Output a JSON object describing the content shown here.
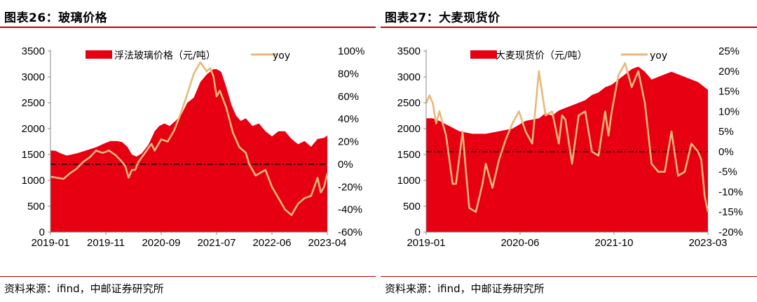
{
  "chart_data": [
    {
      "type": "area+line",
      "title": "图表26：玻璃价格",
      "source": "资料来源：ifind，中邮证券研究所",
      "x_ticks": [
        "2019-01",
        "2019-11",
        "2020-09",
        "2021-07",
        "2022-06",
        "2023-04"
      ],
      "x_range": [
        2019.0,
        2023.25
      ],
      "y_left": {
        "ticks": [
          "0",
          "500",
          "1000",
          "1500",
          "2000",
          "2500",
          "3000",
          "3500"
        ],
        "range": [
          0,
          3500
        ]
      },
      "y_right": {
        "ticks": [
          "-60%",
          "-40%",
          "-20%",
          "0%",
          "20%",
          "40%",
          "60%",
          "80%",
          "100%"
        ],
        "range": [
          -60,
          100
        ]
      },
      "zero_line": true,
      "series": [
        {
          "name": "浮法玻璃价格（元/吨）",
          "kind": "area",
          "axis": "left",
          "color": "#e60012",
          "x": [
            2019.0,
            2019.08,
            2019.16,
            2019.25,
            2019.4,
            2019.55,
            2019.7,
            2019.8,
            2019.92,
            2020.02,
            2020.1,
            2020.18,
            2020.25,
            2020.32,
            2020.4,
            2020.5,
            2020.6,
            2020.67,
            2020.75,
            2020.83,
            2020.92,
            2021.0,
            2021.1,
            2021.2,
            2021.3,
            2021.4,
            2021.45,
            2021.5,
            2021.55,
            2021.62,
            2021.7,
            2021.78,
            2021.85,
            2021.92,
            2022.0,
            2022.1,
            2022.2,
            2022.3,
            2022.4,
            2022.5,
            2022.6,
            2022.7,
            2022.8,
            2022.9,
            2023.0,
            2023.1,
            2023.2,
            2023.25
          ],
          "values": [
            1580,
            1570,
            1520,
            1480,
            1520,
            1580,
            1640,
            1700,
            1760,
            1760,
            1740,
            1650,
            1500,
            1460,
            1520,
            1680,
            1950,
            2050,
            2100,
            2050,
            2150,
            2250,
            2500,
            2600,
            2900,
            3050,
            3100,
            3150,
            3150,
            3100,
            2800,
            2450,
            2250,
            2150,
            2200,
            2050,
            2100,
            1950,
            1850,
            1950,
            1950,
            1800,
            1700,
            1760,
            1650,
            1800,
            1820,
            1870
          ]
        },
        {
          "name": "yoy",
          "kind": "line",
          "axis": "right",
          "color": "#e6b97a",
          "x": [
            2019.0,
            2019.1,
            2019.2,
            2019.3,
            2019.4,
            2019.5,
            2019.6,
            2019.7,
            2019.8,
            2019.9,
            2020.0,
            2020.1,
            2020.15,
            2020.2,
            2020.25,
            2020.3,
            2020.35,
            2020.45,
            2020.55,
            2020.6,
            2020.7,
            2020.8,
            2020.9,
            2021.0,
            2021.1,
            2021.2,
            2021.3,
            2021.4,
            2021.45,
            2021.5,
            2021.55,
            2021.6,
            2021.7,
            2021.8,
            2021.9,
            2022.0,
            2022.05,
            2022.15,
            2022.3,
            2022.4,
            2022.5,
            2022.6,
            2022.7,
            2022.8,
            2022.9,
            2023.0,
            2023.1,
            2023.15,
            2023.2,
            2023.25
          ],
          "values": [
            -11,
            -12,
            -13,
            -8,
            -4,
            2,
            6,
            12,
            10,
            12,
            8,
            2,
            -2,
            -12,
            -5,
            -5,
            2,
            10,
            18,
            12,
            22,
            20,
            30,
            45,
            62,
            80,
            90,
            82,
            85,
            78,
            60,
            65,
            50,
            28,
            15,
            10,
            0,
            -10,
            -5,
            -20,
            -30,
            -40,
            -45,
            -35,
            -30,
            -28,
            -12,
            -25,
            -20,
            -8
          ]
        }
      ]
    },
    {
      "type": "area+line",
      "title": "图表27：大麦现货价",
      "source": "资料来源：ifind，中邮证券研究所",
      "x_ticks": [
        "2019-01",
        "2020-06",
        "2021-10",
        "2023-03"
      ],
      "x_range": [
        2019.0,
        2023.25
      ],
      "y_left": {
        "ticks": [
          "0",
          "500",
          "1000",
          "1500",
          "2000",
          "2500",
          "3000",
          "3500"
        ],
        "range": [
          0,
          3500
        ]
      },
      "y_right": {
        "ticks": [
          "-20%",
          "-15%",
          "-10%",
          "-5%",
          "0%",
          "5%",
          "10%",
          "15%",
          "20%",
          "25%"
        ],
        "range": [
          -20,
          25
        ]
      },
      "zero_line": true,
      "series": [
        {
          "name": "大麦现货价（元/吨）",
          "kind": "area",
          "axis": "left",
          "color": "#e60012",
          "x": [
            2019.0,
            2019.1,
            2019.2,
            2019.35,
            2019.5,
            2019.7,
            2019.9,
            2020.1,
            2020.3,
            2020.5,
            2020.7,
            2020.8,
            2020.9,
            2021.0,
            2021.1,
            2021.2,
            2021.3,
            2021.4,
            2021.5,
            2021.6,
            2021.7,
            2021.8,
            2021.9,
            2022.0,
            2022.1,
            2022.2,
            2022.3,
            2022.4,
            2022.5,
            2022.6,
            2022.7,
            2022.8,
            2022.9,
            2023.0,
            2023.1,
            2023.2,
            2023.25
          ],
          "values": [
            2200,
            2200,
            2150,
            2050,
            1950,
            1900,
            1900,
            1950,
            2000,
            2150,
            2200,
            2300,
            2250,
            2350,
            2400,
            2450,
            2500,
            2550,
            2650,
            2700,
            2800,
            2850,
            2950,
            3050,
            3150,
            3200,
            3100,
            2950,
            3000,
            3050,
            3100,
            3050,
            3000,
            2950,
            2900,
            2800,
            2750
          ]
        },
        {
          "name": "yoy",
          "kind": "line",
          "axis": "right",
          "color": "#e6b97a",
          "x": [
            2019.0,
            2019.05,
            2019.1,
            2019.15,
            2019.2,
            2019.3,
            2019.4,
            2019.45,
            2019.55,
            2019.6,
            2019.65,
            2019.75,
            2019.85,
            2019.9,
            2020.0,
            2020.1,
            2020.2,
            2020.3,
            2020.4,
            2020.5,
            2020.6,
            2020.7,
            2020.8,
            2020.9,
            2021.0,
            2021.05,
            2021.1,
            2021.2,
            2021.3,
            2021.4,
            2021.5,
            2021.6,
            2021.7,
            2021.75,
            2021.8,
            2021.9,
            2022.0,
            2022.1,
            2022.2,
            2022.3,
            2022.4,
            2022.5,
            2022.6,
            2022.7,
            2022.8,
            2022.9,
            2023.0,
            2023.1,
            2023.15,
            2023.2,
            2023.25
          ],
          "values": [
            12,
            14,
            12,
            7,
            10,
            4,
            -8,
            -8,
            5,
            -5,
            -14,
            -15,
            -8,
            -3,
            -9,
            -2,
            3,
            7,
            10,
            5,
            2,
            20,
            9,
            10,
            2,
            9,
            8,
            -3,
            9,
            10,
            0,
            -1,
            10,
            4,
            10,
            19,
            22,
            16,
            20,
            12,
            -3,
            -5,
            -5,
            5,
            -6,
            -5,
            2,
            0,
            -2,
            -11,
            -15
          ]
        }
      ]
    }
  ]
}
